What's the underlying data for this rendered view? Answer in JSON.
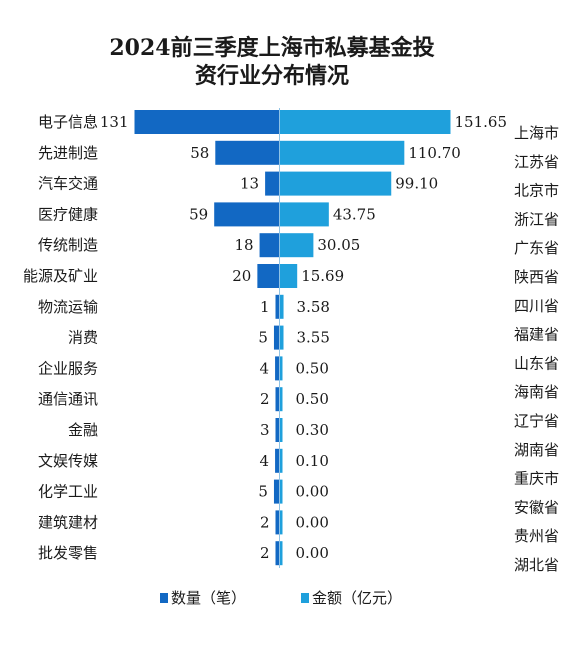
{
  "chart_data": {
    "type": "bar",
    "title_lines": [
      "2024前三季度上海市私募基金投",
      "资行业分布情况"
    ],
    "left_categories": [
      "电子信息",
      "先进制造",
      "汽车交通",
      "医疗健康",
      "传统制造",
      "能源及矿业",
      "物流运输",
      "消费",
      "企业服务",
      "通信通讯",
      "金融",
      "文娱传媒",
      "化学工业",
      "建筑建材",
      "批发零售"
    ],
    "right_categories": [
      "上海市",
      "江苏省",
      "北京市",
      "浙江省",
      "广东省",
      "陕西省",
      "四川省",
      "福建省",
      "山东省",
      "海南省",
      "辽宁省",
      "湖南省",
      "重庆市",
      "安徽省",
      "贵州省",
      "湖北省"
    ],
    "series": [
      {
        "name": "数量（笔）",
        "color": "#1268c3",
        "values": [
          131,
          58,
          13,
          59,
          18,
          20,
          1,
          5,
          4,
          2,
          3,
          4,
          5,
          2,
          2
        ],
        "labels": [
          "131",
          "58",
          "13",
          "59",
          "18",
          "20",
          "1",
          "5",
          "4",
          "2",
          "3",
          "4",
          "5",
          "2",
          "2"
        ]
      },
      {
        "name": "金额（亿元）",
        "color": "#1fa0dc",
        "values": [
          151.65,
          110.7,
          99.1,
          43.75,
          30.05,
          15.69,
          3.58,
          3.55,
          0.5,
          0.5,
          0.3,
          0.1,
          0.0,
          0.0,
          0.0
        ],
        "labels": [
          "151.65",
          "110.70",
          "99.10",
          "43.75",
          "30.05",
          "15.69",
          "3.58",
          "3.55",
          "0.50",
          "0.50",
          "0.30",
          "0.10",
          "0.00",
          "0.00",
          "0.00"
        ]
      }
    ],
    "legend_position": "bottom-center",
    "grid": false
  }
}
